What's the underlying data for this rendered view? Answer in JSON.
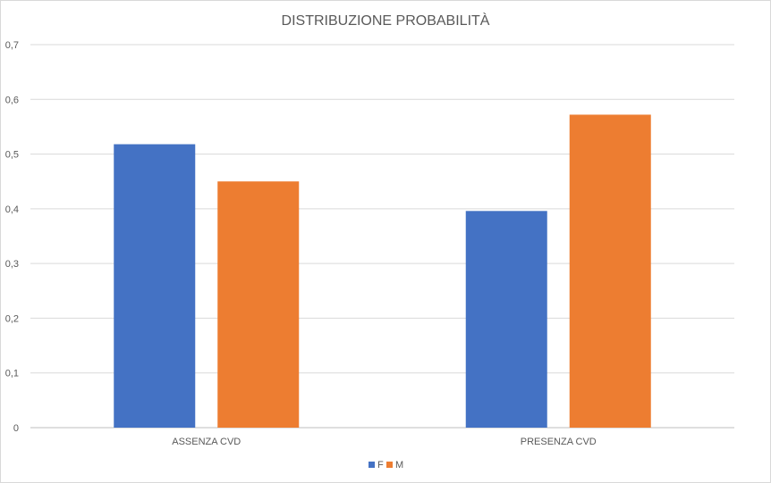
{
  "chart_data": {
    "type": "bar",
    "title": "DISTRIBUZIONE PROBABILITÀ",
    "xlabel": "",
    "ylabel": "",
    "categories": [
      "ASSENZA CVD",
      "PRESENZA CVD"
    ],
    "series": [
      {
        "name": "F",
        "values": [
          0.518,
          0.396
        ],
        "color": "#4472C4"
      },
      {
        "name": "M",
        "values": [
          0.45,
          0.572
        ],
        "color": "#ED7D31"
      }
    ],
    "ylim": [
      0,
      0.7
    ],
    "yticks": [
      0,
      0.1,
      0.2,
      0.3,
      0.4,
      0.5,
      0.6,
      0.7
    ],
    "ytick_labels": [
      "0",
      "0,1",
      "0,2",
      "0,3",
      "0,4",
      "0,5",
      "0,6",
      "0,7"
    ],
    "grid": true,
    "legend": "bottom"
  }
}
